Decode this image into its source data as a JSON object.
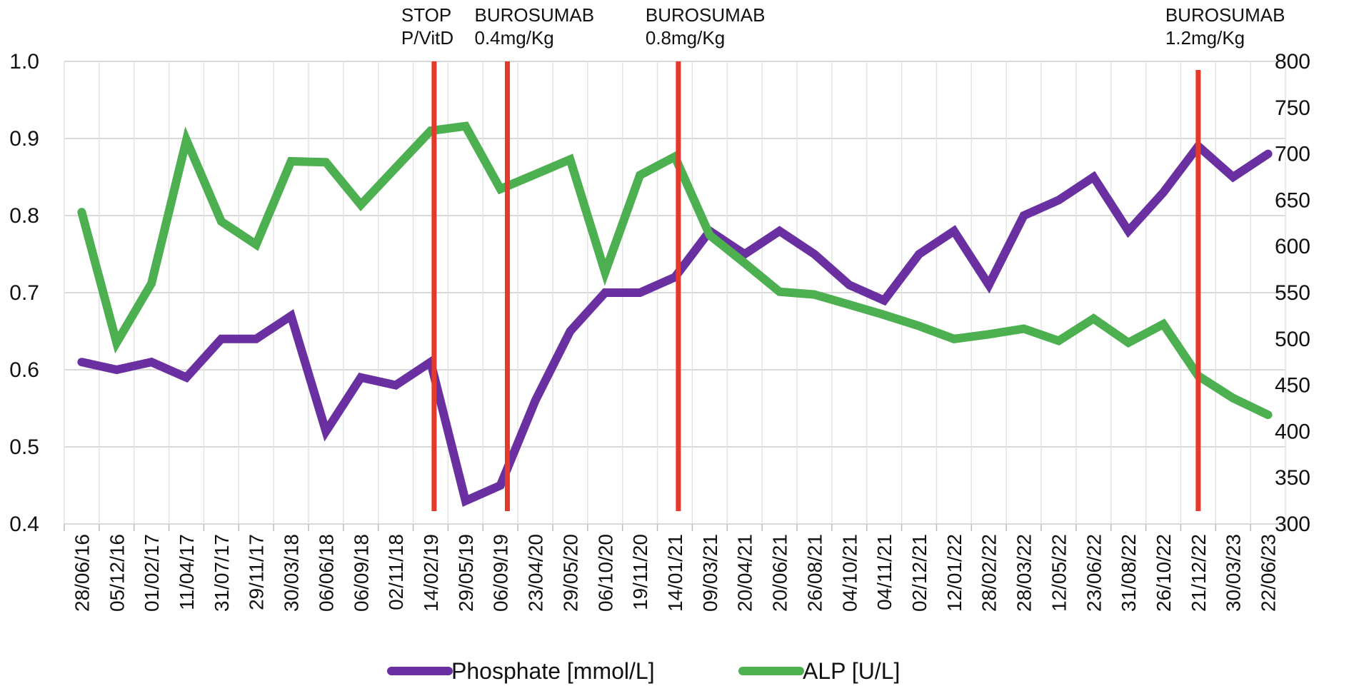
{
  "chart_data": {
    "type": "line",
    "categories": [
      "28/06/16",
      "05/12/16",
      "01/02/17",
      "11/04/17",
      "31/07/17",
      "29/11/17",
      "30/03/18",
      "06/06/18",
      "06/09/18",
      "02/11/18",
      "14/02/19",
      "29/05/19",
      "06/09/19",
      "23/04/20",
      "29/05/20",
      "06/10/20",
      "19/11/20",
      "14/01/21",
      "09/03/21",
      "20/04/21",
      "20/06/21",
      "26/08/21",
      "04/10/21",
      "04/11/21",
      "02/12/21",
      "12/01/22",
      "28/02/22",
      "28/03/22",
      "12/05/22",
      "23/06/22",
      "31/08/22",
      "26/10/22",
      "21/12/22",
      "30/03/23",
      "22/06/23"
    ],
    "series": [
      {
        "name": "Phosphate [mmol/L]",
        "axis": "left",
        "color": "#6a2fa0",
        "values": [
          0.61,
          0.6,
          0.61,
          0.59,
          0.64,
          0.64,
          0.67,
          0.52,
          0.59,
          0.58,
          0.61,
          0.43,
          0.45,
          0.56,
          0.65,
          0.7,
          0.7,
          0.72,
          0.78,
          0.75,
          0.78,
          0.75,
          0.71,
          0.69,
          0.75,
          0.78,
          0.71,
          0.8,
          0.82,
          0.85,
          0.78,
          0.83,
          0.89,
          0.85,
          0.88
        ]
      },
      {
        "name": "ALP [U/L]",
        "axis": "right",
        "color": "#4caf50",
        "values": [
          637,
          496,
          560,
          715,
          627,
          602,
          692,
          691,
          645,
          685,
          725,
          730,
          662,
          678,
          694,
          572,
          677,
          697,
          612,
          582,
          551,
          548,
          537,
          526,
          514,
          500,
          505,
          511,
          498,
          522,
          496,
          516,
          460,
          436,
          418
        ]
      }
    ],
    "y_left": {
      "min": 0.4,
      "max": 1.0,
      "ticks": [
        "0.4",
        "0.5",
        "0.6",
        "0.7",
        "0.8",
        "0.9",
        "1.0"
      ]
    },
    "y_right": {
      "min": 300,
      "max": 800,
      "ticks": [
        "300",
        "350",
        "400",
        "450",
        "500",
        "550",
        "600",
        "650",
        "700",
        "750",
        "800"
      ]
    },
    "grid": true,
    "legend_position": "bottom",
    "markers": [
      {
        "at": 10.1,
        "color": "#e53a2b",
        "lines": [
          "STOP",
          "P/VitD"
        ]
      },
      {
        "at": 12.2,
        "color": "#e53a2b",
        "lines": [
          "BUROSUMAB",
          "0.4mg/Kg"
        ]
      },
      {
        "at": 17.1,
        "color": "#e53a2b",
        "lines": [
          "BUROSUMAB",
          "0.8mg/Kg"
        ]
      },
      {
        "at": 32.0,
        "color": "#e53a2b",
        "lines": [
          "BUROSUMAB",
          "1.2mg/Kg"
        ]
      }
    ]
  }
}
